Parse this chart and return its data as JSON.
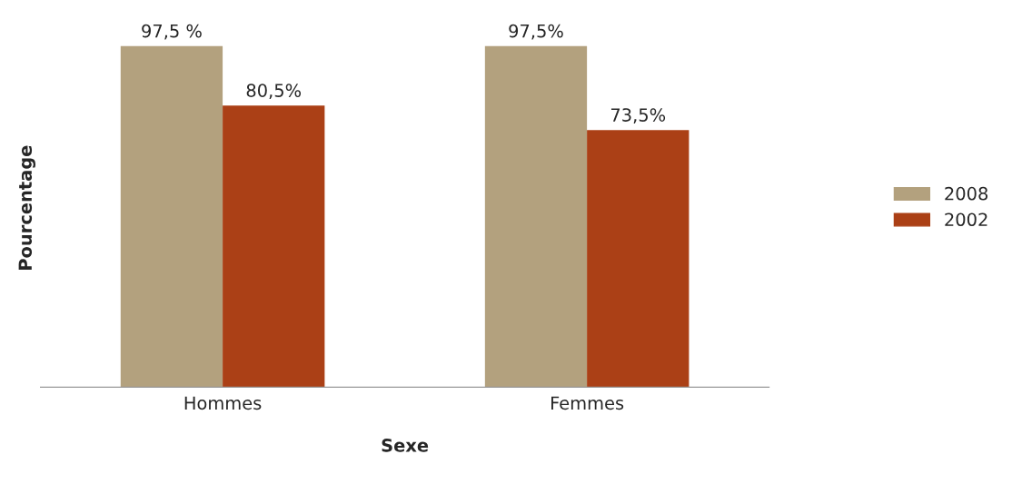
{
  "chart_data": {
    "type": "bar",
    "xlabel": "Sexe",
    "ylabel": "Pourcentage",
    "categories": [
      "Hommes",
      "Femmes"
    ],
    "series": [
      {
        "name": "2008",
        "color": "#b3a17e",
        "values": [
          97.5,
          97.5
        ],
        "value_labels": [
          "97,5 %",
          "97,5%"
        ]
      },
      {
        "name": "2002",
        "color": "#ab4016",
        "values": [
          80.5,
          73.5
        ],
        "value_labels": [
          "80,5%",
          "73,5%"
        ]
      }
    ],
    "legend": "right",
    "grid": false
  }
}
